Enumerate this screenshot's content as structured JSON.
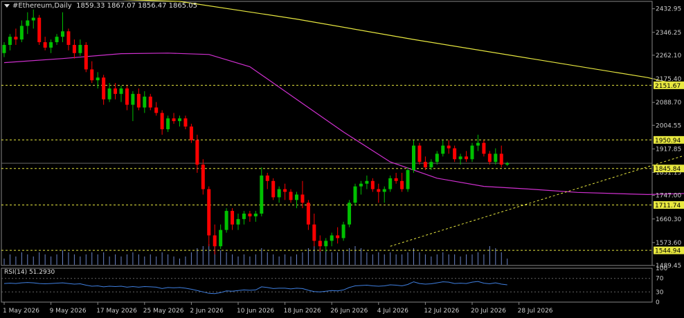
{
  "header": {
    "symbol": "#Ethereum,Daily",
    "ohlc": "1859.33 1867.07 1856.47 1865.05"
  },
  "rsi": {
    "title": "RSI(14) 51.2930",
    "levels": [
      "70",
      "30",
      "0"
    ],
    "scale_max": "100"
  },
  "colors": {
    "background": "#000000",
    "bull": "#00c000",
    "bear": "#ff0000",
    "ma_slow": "#e8e840",
    "ma_fast": "#d030d0",
    "level_line": "#e8e840",
    "volume": "#6b84c8",
    "rsi_line": "#3f7fe0",
    "axis_text": "#cccccc"
  },
  "chart_data": {
    "type": "candlestick",
    "title": "#Ethereum,Daily",
    "price_axis_ticks": [
      "2432.95",
      "2346.25",
      "2262.10",
      "2175.40",
      "2088.70",
      "2004.55",
      "1917.85",
      "1831.15",
      "1747.00",
      "1660.30",
      "1573.60",
      "1489.45"
    ],
    "ylim": [
      1489.45,
      2460
    ],
    "x_ticks": [
      "1 May 2026",
      "9 May 2026",
      "17 May 2026",
      "25 May 2026",
      "2 Jun 2026",
      "10 Jun 2026",
      "18 Jun 2026",
      "26 Jun 2026",
      "4 Jul 2026",
      "12 Jul 2026",
      "20 Jul 2026",
      "28 Jul 2026"
    ],
    "current_price": "1865.05",
    "levels": [
      {
        "value": 2151.67,
        "label": "2151.67"
      },
      {
        "value": 1950.94,
        "label": "1950.94"
      },
      {
        "value": 1845.84,
        "label": "1845.84"
      },
      {
        "value": 1711.74,
        "label": "1711.74"
      },
      {
        "value": 1544.94,
        "label": "1544.94"
      }
    ],
    "candles": [
      [
        2270,
        2310,
        2255,
        2300
      ],
      [
        2300,
        2340,
        2280,
        2330
      ],
      [
        2330,
        2360,
        2300,
        2320
      ],
      [
        2320,
        2390,
        2310,
        2370
      ],
      [
        2370,
        2420,
        2340,
        2390
      ],
      [
        2390,
        2430,
        2360,
        2400
      ],
      [
        2400,
        2410,
        2300,
        2310
      ],
      [
        2310,
        2330,
        2280,
        2290
      ],
      [
        2290,
        2320,
        2270,
        2310
      ],
      [
        2310,
        2340,
        2300,
        2330
      ],
      [
        2330,
        2420,
        2310,
        2350
      ],
      [
        2350,
        2360,
        2280,
        2300
      ],
      [
        2300,
        2320,
        2250,
        2270
      ],
      [
        2270,
        2320,
        2260,
        2300
      ],
      [
        2300,
        2310,
        2200,
        2210
      ],
      [
        2210,
        2240,
        2160,
        2170
      ],
      [
        2170,
        2200,
        2140,
        2180
      ],
      [
        2180,
        2190,
        2080,
        2100
      ],
      [
        2100,
        2160,
        2090,
        2140
      ],
      [
        2140,
        2160,
        2100,
        2120
      ],
      [
        2120,
        2150,
        2090,
        2140
      ],
      [
        2140,
        2150,
        2060,
        2080
      ],
      [
        2080,
        2130,
        2020,
        2120
      ],
      [
        2120,
        2140,
        2060,
        2070
      ],
      [
        2070,
        2130,
        2050,
        2110
      ],
      [
        2110,
        2120,
        2060,
        2070
      ],
      [
        2070,
        2090,
        2040,
        2050
      ],
      [
        2050,
        2060,
        1970,
        1990
      ],
      [
        1990,
        2040,
        1980,
        2030
      ],
      [
        2030,
        2050,
        2010,
        2020
      ],
      [
        2020,
        2040,
        2000,
        2030
      ],
      [
        2030,
        2040,
        1990,
        2000
      ],
      [
        2000,
        2010,
        1940,
        1950
      ],
      [
        1950,
        1970,
        1830,
        1860
      ],
      [
        1860,
        1880,
        1750,
        1770
      ],
      [
        1770,
        1780,
        1560,
        1600
      ],
      [
        1600,
        1640,
        1530,
        1560
      ],
      [
        1560,
        1640,
        1550,
        1620
      ],
      [
        1620,
        1700,
        1610,
        1690
      ],
      [
        1690,
        1700,
        1620,
        1640
      ],
      [
        1640,
        1680,
        1620,
        1660
      ],
      [
        1660,
        1690,
        1640,
        1680
      ],
      [
        1680,
        1690,
        1650,
        1670
      ],
      [
        1670,
        1690,
        1650,
        1680
      ],
      [
        1680,
        1850,
        1670,
        1820
      ],
      [
        1820,
        1830,
        1770,
        1800
      ],
      [
        1800,
        1810,
        1730,
        1740
      ],
      [
        1740,
        1780,
        1720,
        1770
      ],
      [
        1770,
        1790,
        1730,
        1760
      ],
      [
        1760,
        1770,
        1720,
        1730
      ],
      [
        1730,
        1760,
        1700,
        1750
      ],
      [
        1750,
        1800,
        1700,
        1720
      ],
      [
        1720,
        1730,
        1620,
        1640
      ],
      [
        1640,
        1680,
        1560,
        1580
      ],
      [
        1580,
        1600,
        1540,
        1560
      ],
      [
        1560,
        1590,
        1540,
        1580
      ],
      [
        1580,
        1610,
        1560,
        1600
      ],
      [
        1600,
        1630,
        1570,
        1590
      ],
      [
        1590,
        1650,
        1580,
        1640
      ],
      [
        1640,
        1730,
        1630,
        1720
      ],
      [
        1720,
        1790,
        1710,
        1780
      ],
      [
        1780,
        1800,
        1750,
        1790
      ],
      [
        1790,
        1820,
        1770,
        1800
      ],
      [
        1800,
        1810,
        1760,
        1770
      ],
      [
        1770,
        1790,
        1720,
        1760
      ],
      [
        1760,
        1780,
        1720,
        1770
      ],
      [
        1770,
        1820,
        1760,
        1810
      ],
      [
        1810,
        1830,
        1790,
        1800
      ],
      [
        1800,
        1830,
        1760,
        1770
      ],
      [
        1770,
        1850,
        1760,
        1840
      ],
      [
        1840,
        1950,
        1830,
        1930
      ],
      [
        1930,
        1940,
        1860,
        1870
      ],
      [
        1870,
        1890,
        1840,
        1850
      ],
      [
        1850,
        1880,
        1840,
        1870
      ],
      [
        1870,
        1910,
        1860,
        1900
      ],
      [
        1900,
        1950,
        1890,
        1930
      ],
      [
        1930,
        1950,
        1900,
        1920
      ],
      [
        1920,
        1930,
        1870,
        1880
      ],
      [
        1880,
        1900,
        1860,
        1890
      ],
      [
        1890,
        1910,
        1870,
        1880
      ],
      [
        1880,
        1940,
        1870,
        1930
      ],
      [
        1930,
        1970,
        1910,
        1940
      ],
      [
        1940,
        1950,
        1890,
        1900
      ],
      [
        1900,
        1910,
        1860,
        1870
      ],
      [
        1870,
        1920,
        1860,
        1900
      ],
      [
        1900,
        1930,
        1850,
        1860
      ],
      [
        1860,
        1870,
        1855,
        1865
      ]
    ],
    "ma_fast": [
      [
        0,
        2235
      ],
      [
        10,
        2250
      ],
      [
        20,
        2268
      ],
      [
        28,
        2270
      ],
      [
        35,
        2265
      ],
      [
        42,
        2220
      ],
      [
        50,
        2100
      ],
      [
        58,
        1980
      ],
      [
        66,
        1870
      ],
      [
        74,
        1810
      ],
      [
        82,
        1780
      ],
      [
        90,
        1770
      ],
      [
        98,
        1758
      ],
      [
        110,
        1750
      ],
      [
        118,
        1755
      ],
      [
        124,
        1772
      ]
    ],
    "ma_slow": [
      [
        0,
        2480
      ],
      [
        30,
        2460
      ],
      [
        50,
        2395
      ],
      [
        70,
        2320
      ],
      [
        90,
        2250
      ],
      [
        110,
        2180
      ],
      [
        124,
        2110
      ]
    ],
    "trend_line": [
      [
        66,
        1560
      ],
      [
        124,
        1945
      ]
    ],
    "volumes": [
      0.3,
      0.5,
      0.4,
      0.6,
      0.5,
      0.4,
      0.6,
      0.5,
      0.4,
      0.5,
      0.7,
      0.6,
      0.5,
      0.4,
      0.5,
      0.6,
      0.5,
      0.6,
      0.4,
      0.5,
      0.4,
      0.5,
      0.6,
      0.5,
      0.4,
      0.5,
      0.4,
      0.6,
      0.5,
      0.4,
      0.3,
      0.4,
      0.6,
      0.8,
      0.9,
      1.0,
      0.9,
      0.7,
      0.6,
      0.5,
      0.4,
      0.5,
      0.4,
      0.5,
      0.8,
      0.6,
      0.5,
      0.4,
      0.5,
      0.4,
      0.5,
      0.6,
      0.8,
      0.9,
      0.8,
      0.7,
      0.6,
      0.6,
      0.7,
      0.8,
      0.9,
      0.8,
      0.6,
      0.5,
      0.6,
      0.5,
      0.6,
      0.5,
      0.5,
      0.6,
      0.8,
      0.6,
      0.5,
      0.4,
      0.5,
      0.6,
      0.5,
      0.5,
      0.4,
      0.5,
      0.5,
      0.6,
      0.5,
      0.9,
      0.8,
      0.6,
      0.3
    ],
    "rsi": [
      55,
      56,
      55,
      57,
      58,
      57,
      55,
      54,
      55,
      56,
      57,
      55,
      53,
      54,
      50,
      47,
      48,
      45,
      47,
      46,
      47,
      44,
      46,
      44,
      46,
      45,
      44,
      40,
      43,
      42,
      43,
      41,
      38,
      34,
      30,
      26,
      25,
      28,
      33,
      32,
      34,
      36,
      35,
      36,
      45,
      43,
      40,
      41,
      41,
      39,
      41,
      40,
      35,
      31,
      30,
      32,
      34,
      33,
      36,
      43,
      48,
      49,
      50,
      48,
      47,
      48,
      51,
      50,
      48,
      52,
      60,
      55,
      53,
      54,
      57,
      60,
      59,
      55,
      56,
      55,
      59,
      61,
      56,
      54,
      57,
      53,
      51
    ]
  }
}
